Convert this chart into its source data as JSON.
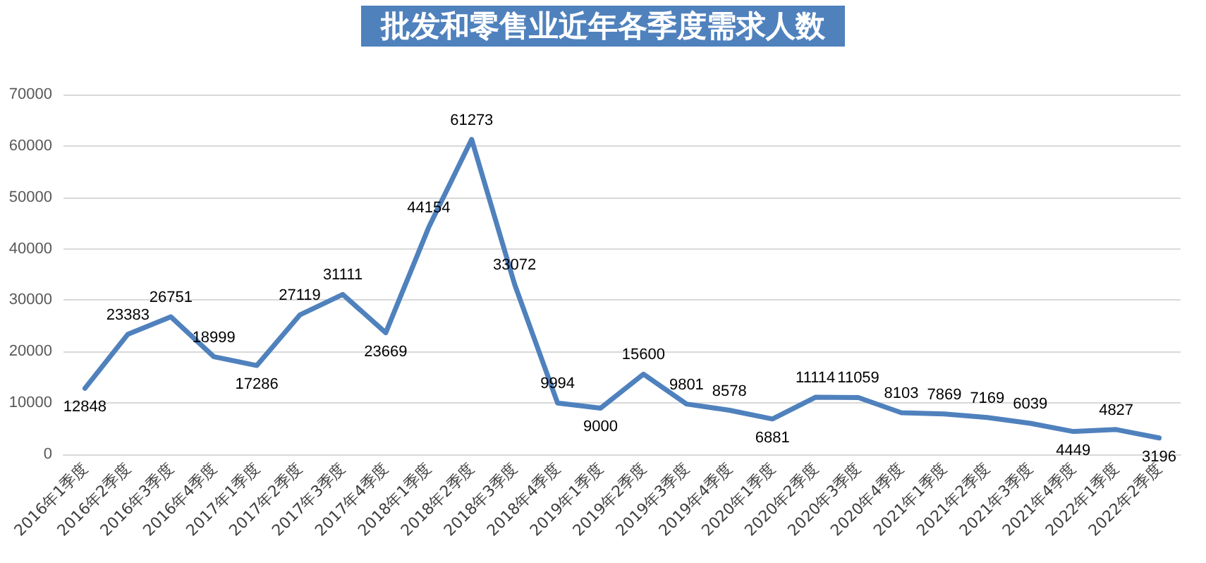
{
  "chart_data": {
    "type": "line",
    "title": "批发和零售业近年各季度需求人数",
    "categories": [
      "2016年1季度",
      "2016年2季度",
      "2016年3季度",
      "2016年4季度",
      "2017年1季度",
      "2017年2季度",
      "2017年3季度",
      "2017年4季度",
      "2018年1季度",
      "2018年2季度",
      "2018年3季度",
      "2018年4季度",
      "2019年1季度",
      "2019年2季度",
      "2019年3季度",
      "2019年4季度",
      "2020年1季度",
      "2020年2季度",
      "2020年3季度",
      "2020年4季度",
      "2021年1季度",
      "2021年2季度",
      "2021年3季度",
      "2021年4季度",
      "2022年1季度",
      "2022年2季度"
    ],
    "series": [
      {
        "color": "#4f81bd",
        "values": [
          12848,
          23383,
          26751,
          18999,
          17286,
          27119,
          31111,
          23669,
          44154,
          61273,
          33072,
          9994,
          9000,
          15600,
          9801,
          8578,
          6881,
          11114,
          11059,
          8103,
          7869,
          7169,
          6039,
          4449,
          4827,
          3196
        ]
      }
    ],
    "ylim": [
      0,
      70000
    ],
    "yticks": [
      0,
      10000,
      20000,
      30000,
      40000,
      50000,
      60000,
      70000
    ],
    "grid": "y",
    "marker": "none",
    "line_style": "solid",
    "data_labels": true
  }
}
